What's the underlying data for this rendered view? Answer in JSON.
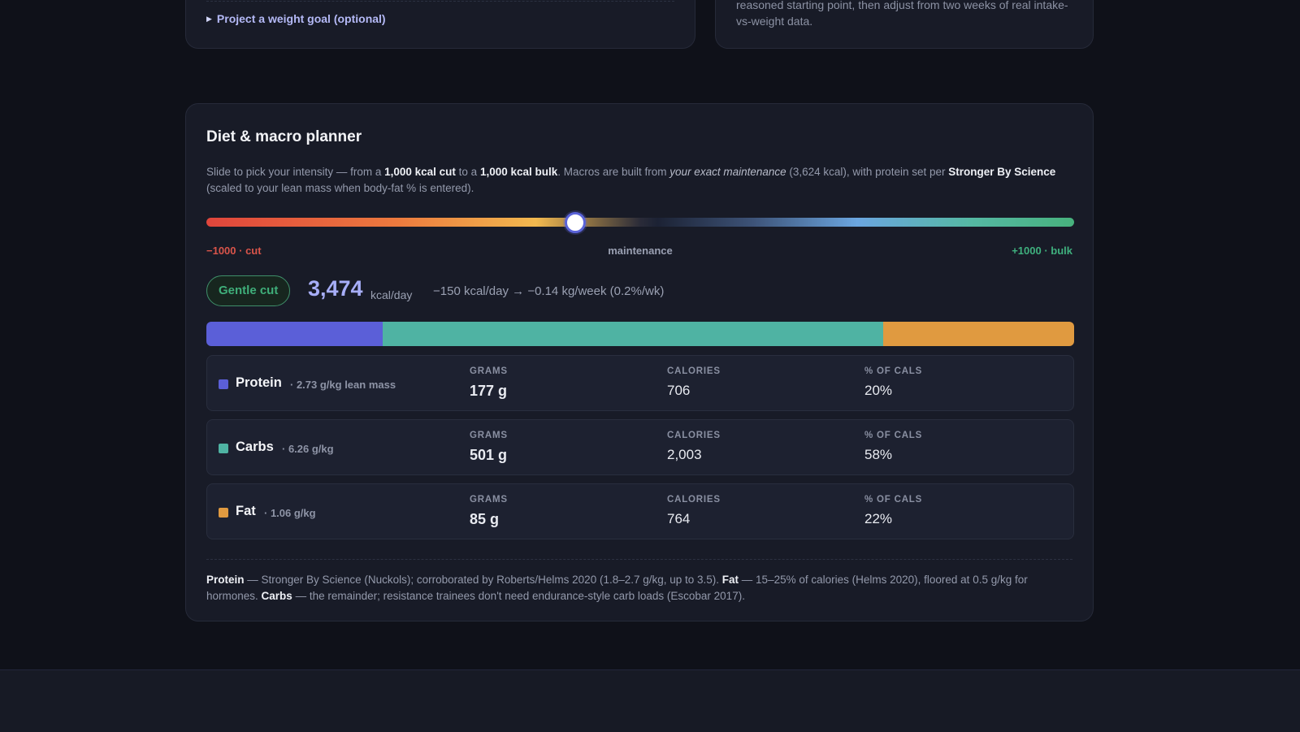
{
  "top": {
    "goal_toggle": "Project a weight goal (optional)",
    "right_text": "reasoned starting point, then adjust from two weeks of real intake-vs-weight data."
  },
  "planner": {
    "title": "Diet & macro planner",
    "intro": {
      "t1": "Slide to pick your intensity — from a ",
      "b1": "1,000 kcal cut",
      "t2": " to a ",
      "b2": "1,000 kcal bulk",
      "t3": ". Macros are built from ",
      "i1": "your exact maintenance",
      "t4": " (3,624 kcal), with protein set per ",
      "b3": "Stronger By Science",
      "t5": " (scaled to your lean mass when body-fat % is entered)."
    },
    "slider": {
      "label_cut": "−1000 · cut",
      "label_maint": "maintenance",
      "label_bulk": "+1000 · bulk",
      "value": -150,
      "min": -1000,
      "max": 1000
    },
    "badge": "Gentle cut",
    "kcal_value": "3,474",
    "kcal_unit": "kcal/day",
    "delta": "−150 kcal/day → −0.14 kg/week (0.2%/wk)",
    "colors": {
      "protein": "#5b5fd8",
      "carbs": "#4fb3a3",
      "fat": "#e09a40"
    },
    "macros": [
      {
        "name": "Protein",
        "note": "· 2.73 g/kg lean mass",
        "grams_label": "GRAMS",
        "grams": "177 g",
        "cal_label": "CALORIES",
        "cal": "706",
        "pct_label": "% OF CALS",
        "pct": "20%",
        "share": 20.3
      },
      {
        "name": "Carbs",
        "note": "· 6.26 g/kg",
        "grams_label": "GRAMS",
        "grams": "501 g",
        "cal_label": "CALORIES",
        "cal": "2,003",
        "pct_label": "% OF CALS",
        "pct": "58%",
        "share": 57.7
      },
      {
        "name": "Fat",
        "note": "· 1.06 g/kg",
        "grams_label": "GRAMS",
        "grams": "85 g",
        "cal_label": "CALORIES",
        "cal": "764",
        "pct_label": "% OF CALS",
        "pct": "22%",
        "share": 22.0
      }
    ],
    "footnote": {
      "b1": "Protein",
      "t1": " — Stronger By Science (Nuckols); corroborated by Roberts/Helms 2020 (1.8–2.7 g/kg, up to 3.5). ",
      "b2": "Fat",
      "t2": " — 15–25% of calories (Helms 2020), floored at 0.5 g/kg for hormones. ",
      "b3": "Carbs",
      "t3": " — the remainder; resistance trainees don't need endurance-style carb loads (Escobar 2017)."
    }
  }
}
